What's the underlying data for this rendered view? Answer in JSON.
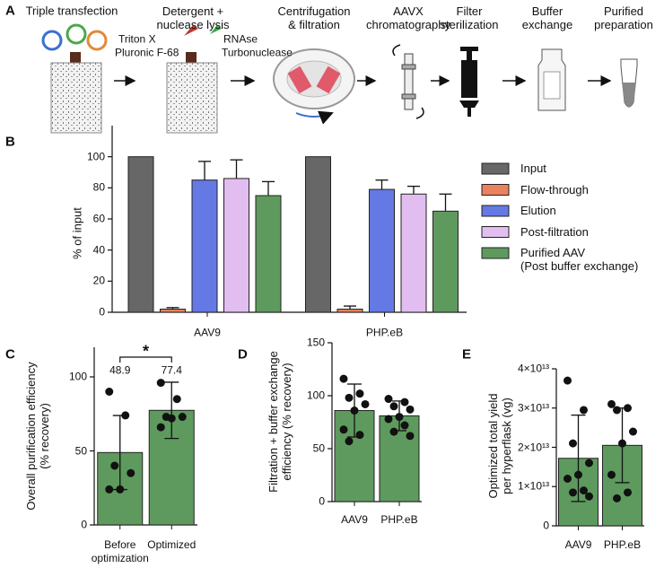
{
  "panels": [
    "A",
    "B",
    "C",
    "D",
    "E"
  ],
  "workflow": {
    "steps": [
      "Triple transfection",
      "Detergent +\nnuclease lysis",
      "Centrifugation\n& filtration",
      "AAVX\nchromatography",
      "Filter\nsterilization",
      "Buffer\nexchange",
      "Purified\npreparation"
    ],
    "reagents": [
      "Triton X",
      "Pluronic F-68",
      "RNAse",
      "Turbonuclease"
    ]
  },
  "chart_data": [
    {
      "type": "bar",
      "ylabel": "% of input",
      "categories": [
        "AAV9",
        "PHP.eB"
      ],
      "ylim": [
        0,
        120
      ],
      "yticks": [
        0,
        20,
        40,
        60,
        80,
        100
      ],
      "legend": "right",
      "series": [
        {
          "name": "Input",
          "color": "#676767",
          "values": [
            100,
            100
          ],
          "errors": [
            null,
            null
          ]
        },
        {
          "name": "Flow-through",
          "color": "#e9825e",
          "values": [
            2,
            2
          ],
          "errors": [
            1,
            2
          ]
        },
        {
          "name": "Elution",
          "color": "#6479e4",
          "values": [
            85,
            79
          ],
          "errors": [
            12,
            6
          ]
        },
        {
          "name": "Post-filtration",
          "color": "#e2bdf0",
          "values": [
            86,
            76
          ],
          "errors": [
            12,
            5
          ]
        },
        {
          "name": "Purified AAV\n(Post buffer exchange)",
          "color": "#5e9a5e",
          "values": [
            75,
            65
          ],
          "errors": [
            9,
            11
          ]
        }
      ]
    },
    {
      "type": "bar_points",
      "ylabel": "Overall purification efficiency\n(% recovery)",
      "categories": [
        "Before\noptimization",
        "Optimized"
      ],
      "values": [
        48.9,
        77.4
      ],
      "errors": [
        25,
        19
      ],
      "data_labels": true,
      "annotation": "*",
      "points": [
        [
          90,
          74,
          40,
          35,
          24,
          24
        ],
        [
          96,
          85,
          73,
          73,
          72,
          66
        ]
      ],
      "color": "#5e9a5e",
      "ylim": [
        0,
        120
      ],
      "yticks": [
        0,
        50,
        100
      ]
    },
    {
      "type": "bar_points",
      "ylabel": "Filtration + buffer exchange\nefficiency (% recovery)",
      "categories": [
        "AAV9",
        "PHP.eB"
      ],
      "values": [
        86,
        81
      ],
      "errors": [
        25,
        14
      ],
      "points": [
        [
          116,
          102,
          98,
          92,
          86,
          68,
          63,
          57
        ],
        [
          97,
          94,
          90,
          87,
          80,
          78,
          72,
          66,
          62
        ]
      ],
      "color": "#5e9a5e",
      "ylim": [
        0,
        150
      ],
      "yticks": [
        0,
        50,
        100,
        150
      ]
    },
    {
      "type": "bar_points",
      "ylabel": "Optimized total yield\nper hyperflask (vg)",
      "categories": [
        "AAV9",
        "PHP.eB"
      ],
      "values": [
        17200000000000.0,
        20500000000000.0
      ],
      "errors": [
        11000000000000.0,
        9500000000000.0
      ],
      "points": [
        [
          37000000000000.0,
          29500000000000.0,
          21000000000000.0,
          16000000000000.0,
          13000000000000.0,
          12000000000000.0,
          9000000000000.0,
          8500000000000.0,
          7500000000000.0
        ],
        [
          31000000000000.0,
          30000000000000.0,
          29500000000000.0,
          24000000000000.0,
          21000000000000.0,
          13000000000000.0,
          8500000000000.0,
          7000000000000.0
        ]
      ],
      "color": "#5e9a5e",
      "ylim": [
        0,
        40000000000000.0
      ],
      "yticks": [
        0,
        {
          "value": 10000000000000.0,
          "label": "1×10¹³"
        },
        {
          "value": 20000000000000.0,
          "label": "2×10¹³"
        },
        {
          "value": 30000000000000.0,
          "label": "3×10¹³"
        },
        {
          "value": 40000000000000.0,
          "label": "4×10¹³"
        }
      ]
    }
  ]
}
